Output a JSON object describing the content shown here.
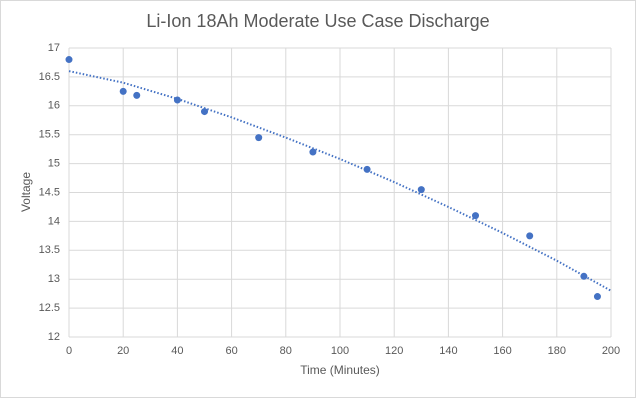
{
  "chart_data": {
    "type": "scatter",
    "title": "Li-Ion 18Ah Moderate Use Case Discharge",
    "x_label": "Time (Minutes)",
    "y_label": "Voltage",
    "x": [
      0,
      20,
      25,
      40,
      50,
      70,
      90,
      110,
      130,
      150,
      170,
      190,
      195
    ],
    "values": [
      16.8,
      16.25,
      16.18,
      16.1,
      15.9,
      15.45,
      15.2,
      14.9,
      14.55,
      14.1,
      13.75,
      13.05,
      12.7
    ],
    "color": "#4472c4",
    "trendline": {
      "x": [
        0,
        20,
        40,
        60,
        80,
        100,
        120,
        140,
        160,
        180,
        200
      ],
      "values": [
        16.6,
        16.4,
        16.12,
        15.8,
        15.45,
        15.08,
        14.68,
        14.25,
        13.8,
        13.32,
        12.8
      ],
      "color": "#4472c4",
      "style": "dotted"
    },
    "xlim": [
      0,
      200
    ],
    "xticks": [
      0,
      20,
      40,
      60,
      80,
      100,
      120,
      140,
      160,
      180,
      200
    ],
    "ylim": [
      12,
      17
    ],
    "yticks": [
      12,
      12.5,
      13,
      13.5,
      14,
      14.5,
      15,
      15.5,
      16,
      16.5,
      17
    ],
    "grid": true
  }
}
